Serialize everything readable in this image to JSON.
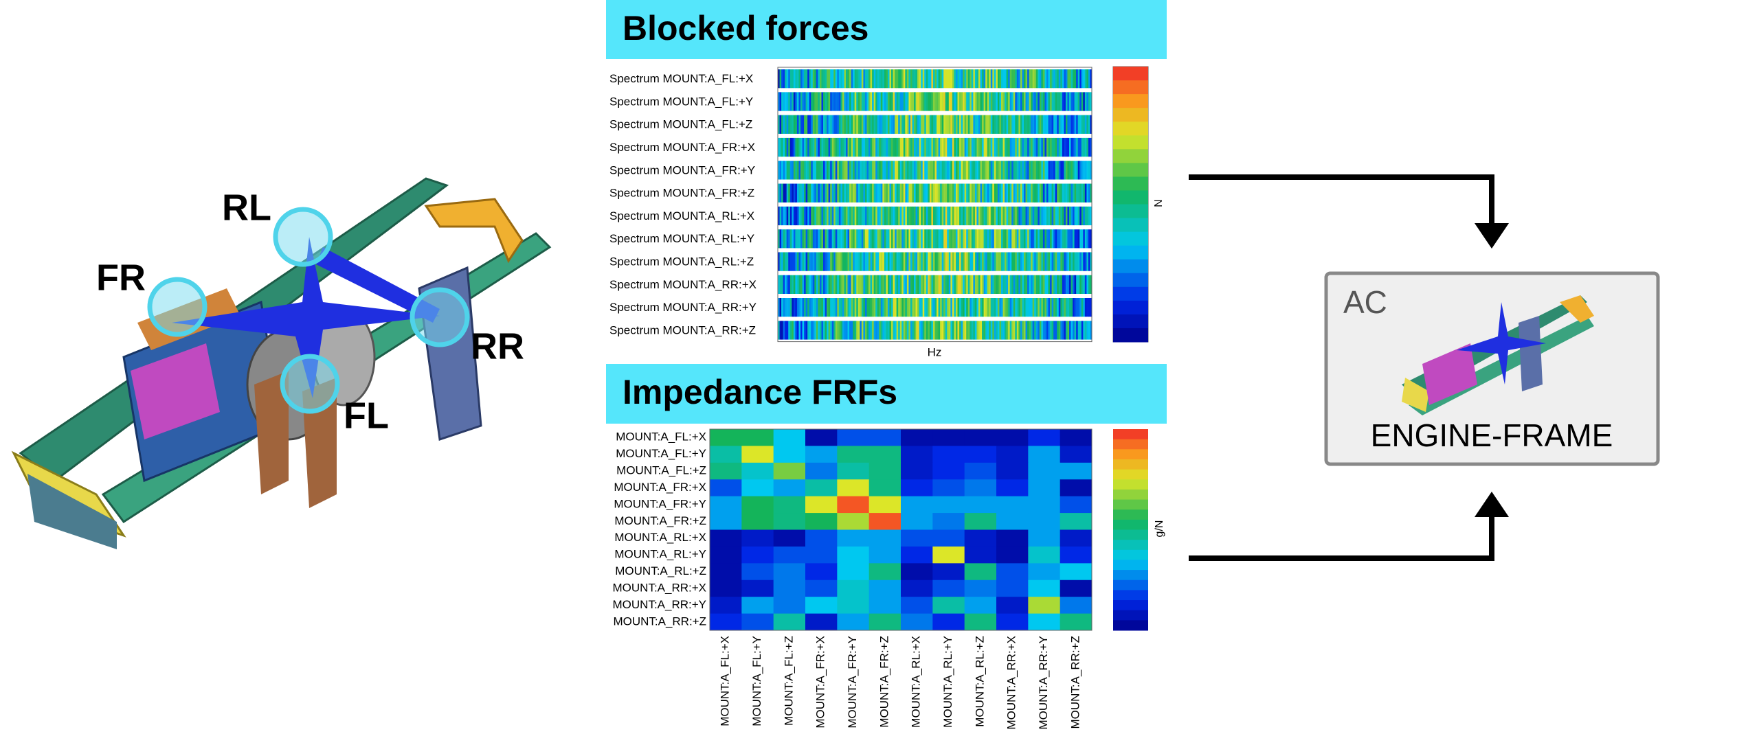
{
  "mount_labels": [
    "FR",
    "RL",
    "RR",
    "FL"
  ],
  "blocked_forces": {
    "title": "Blocked forces",
    "rows": [
      "Spectrum MOUNT:A_FL:+X",
      "Spectrum MOUNT:A_FL:+Y",
      "Spectrum MOUNT:A_FL:+Z",
      "Spectrum MOUNT:A_FR:+X",
      "Spectrum MOUNT:A_FR:+Y",
      "Spectrum MOUNT:A_FR:+Z",
      "Spectrum MOUNT:A_RL:+X",
      "Spectrum MOUNT:A_RL:+Y",
      "Spectrum MOUNT:A_RL:+Z",
      "Spectrum MOUNT:A_RR:+X",
      "Spectrum MOUNT:A_RR:+Y",
      "Spectrum MOUNT:A_RR:+Z"
    ],
    "unit": "N",
    "x_label": "Hz"
  },
  "impedance": {
    "title": "Impedance FRFs",
    "rows": [
      "MOUNT:A_FL:+X",
      "MOUNT:A_FL:+Y",
      "MOUNT:A_FL:+Z",
      "MOUNT:A_FR:+X",
      "MOUNT:A_FR:+Y",
      "MOUNT:A_FR:+Z",
      "MOUNT:A_RL:+X",
      "MOUNT:A_RL:+Y",
      "MOUNT:A_RL:+Z",
      "MOUNT:A_RR:+X",
      "MOUNT:A_RR:+Y",
      "MOUNT:A_RR:+Z"
    ],
    "columns": [
      "MOUNT:A_FL:+X",
      "MOUNT:A_FL:+Y",
      "MOUNT:A_FL:+Z",
      "MOUNT:A_FR:+X",
      "MOUNT:A_FR:+Y",
      "MOUNT:A_FR:+Z",
      "MOUNT:A_RL:+X",
      "MOUNT:A_RL:+Y",
      "MOUNT:A_RL:+Z",
      "MOUNT:A_RR:+X",
      "MOUNT:A_RR:+Y",
      "MOUNT:A_RR:+Z"
    ],
    "unit": "g/N",
    "levels": [
      [
        0.55,
        0.55,
        0.35,
        0.05,
        0.2,
        0.2,
        0.05,
        0.05,
        0.05,
        0.05,
        0.15,
        0.05
      ],
      [
        0.45,
        0.75,
        0.35,
        0.3,
        0.5,
        0.5,
        0.1,
        0.15,
        0.15,
        0.1,
        0.3,
        0.1
      ],
      [
        0.5,
        0.4,
        0.65,
        0.25,
        0.45,
        0.5,
        0.1,
        0.15,
        0.2,
        0.1,
        0.3,
        0.3
      ],
      [
        0.2,
        0.35,
        0.3,
        0.45,
        0.75,
        0.5,
        0.15,
        0.2,
        0.25,
        0.15,
        0.3,
        0.05
      ],
      [
        0.3,
        0.55,
        0.5,
        0.75,
        0.95,
        0.75,
        0.3,
        0.3,
        0.3,
        0.3,
        0.3,
        0.2
      ],
      [
        0.3,
        0.55,
        0.5,
        0.55,
        0.7,
        0.95,
        0.3,
        0.25,
        0.5,
        0.3,
        0.3,
        0.45
      ],
      [
        0.05,
        0.1,
        0.05,
        0.2,
        0.3,
        0.3,
        0.2,
        0.2,
        0.1,
        0.05,
        0.3,
        0.1
      ],
      [
        0.05,
        0.15,
        0.2,
        0.2,
        0.35,
        0.3,
        0.15,
        0.75,
        0.1,
        0.05,
        0.4,
        0.15
      ],
      [
        0.05,
        0.2,
        0.25,
        0.15,
        0.35,
        0.5,
        0.05,
        0.1,
        0.5,
        0.2,
        0.3,
        0.35
      ],
      [
        0.05,
        0.1,
        0.25,
        0.2,
        0.4,
        0.3,
        0.1,
        0.2,
        0.25,
        0.2,
        0.35,
        0.05
      ],
      [
        0.1,
        0.3,
        0.25,
        0.35,
        0.4,
        0.3,
        0.2,
        0.45,
        0.3,
        0.1,
        0.7,
        0.25
      ],
      [
        0.15,
        0.2,
        0.45,
        0.1,
        0.3,
        0.5,
        0.25,
        0.15,
        0.5,
        0.15,
        0.35,
        0.5
      ]
    ]
  },
  "result": {
    "badge": "AC",
    "label": "ENGINE-FRAME"
  }
}
